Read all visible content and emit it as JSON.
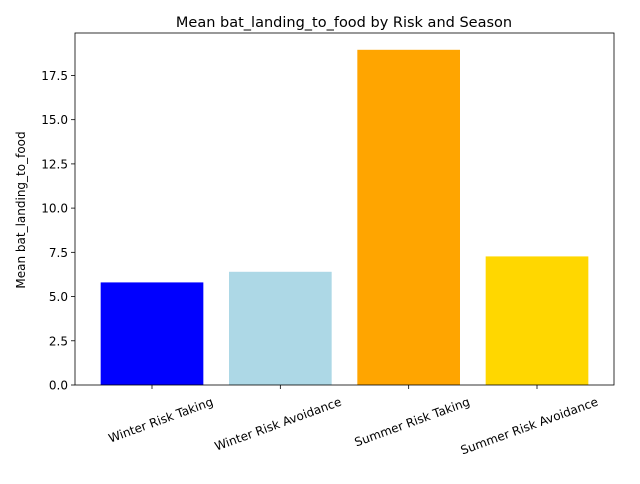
{
  "chart_data": {
    "type": "bar",
    "title": "Mean bat_landing_to_food by Risk and Season",
    "xlabel": "",
    "ylabel": "Mean bat_landing_to_food",
    "categories": [
      "Winter Risk Taking",
      "Winter Risk Avoidance",
      "Summer Risk Taking",
      "Summer Risk Avoidance"
    ],
    "values": [
      5.8,
      6.4,
      18.95,
      7.27
    ],
    "colors": [
      "#0000ff",
      "#add8e6",
      "#ffa500",
      "#ffd700"
    ],
    "ylim": [
      0,
      19.9
    ],
    "yticks": [
      0.0,
      2.5,
      5.0,
      7.5,
      10.0,
      12.5,
      15.0,
      17.5
    ],
    "ytick_labels": [
      "0.0",
      "2.5",
      "5.0",
      "7.5",
      "10.0",
      "12.5",
      "15.0",
      "17.5"
    ],
    "grid": false,
    "legend": "none"
  }
}
